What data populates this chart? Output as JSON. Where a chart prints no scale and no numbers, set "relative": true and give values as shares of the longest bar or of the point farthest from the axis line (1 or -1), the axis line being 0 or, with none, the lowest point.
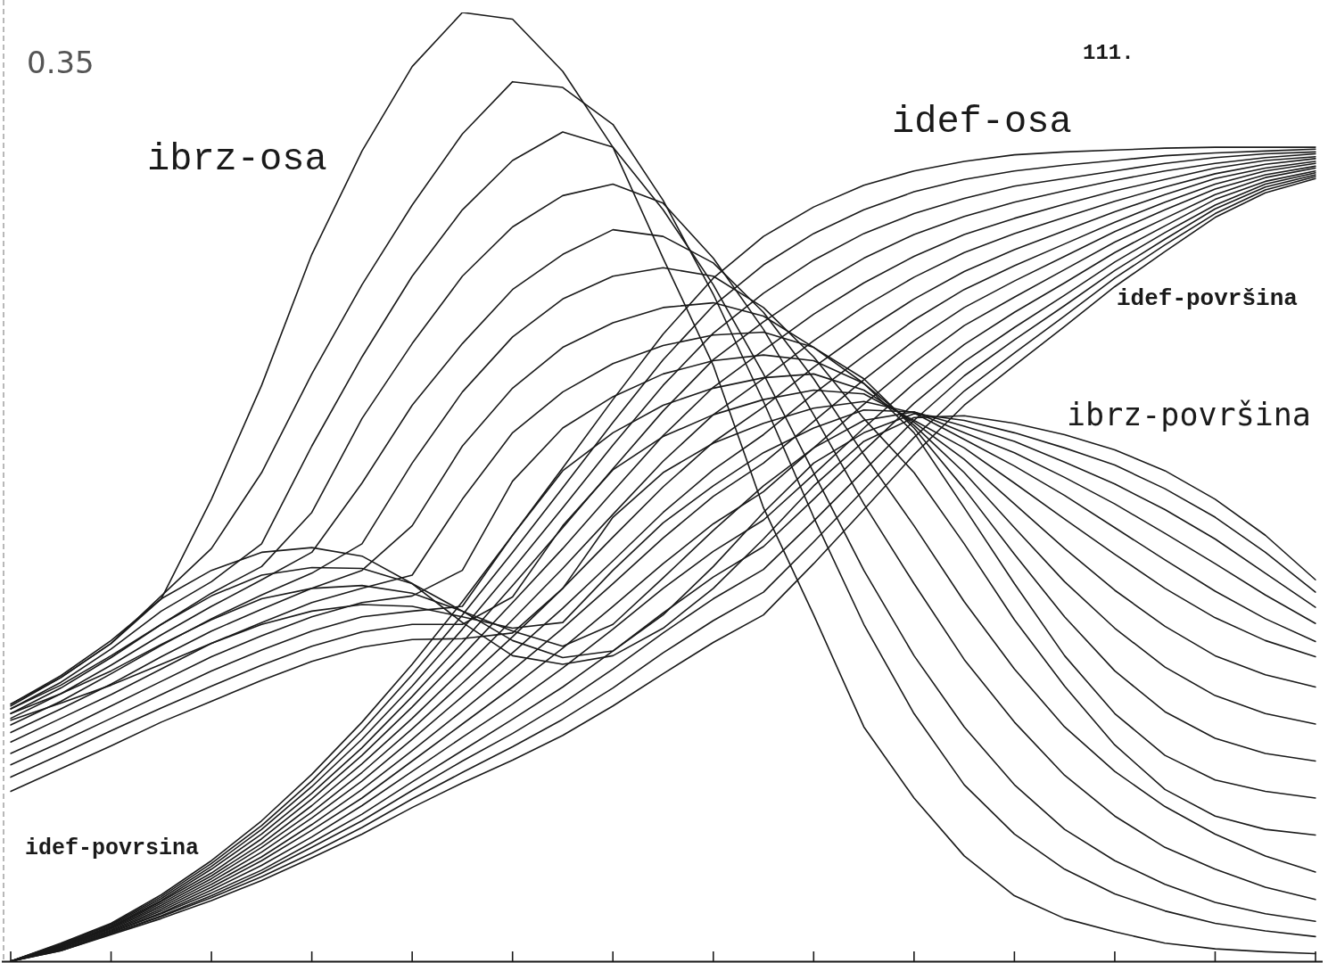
{
  "chart_data": {
    "type": "line",
    "relative": true,
    "marker": "none",
    "line_style": "solid",
    "categories": [
      null,
      null,
      null,
      null,
      null,
      null,
      null,
      null,
      null,
      null,
      null,
      null,
      null,
      null,
      null,
      null,
      null,
      null,
      null,
      null,
      null,
      null,
      null,
      null,
      null,
      null,
      null
    ],
    "annotations": [
      "0.35",
      "111.",
      "idef-povrsina"
    ],
    "series": [
      {
        "name": "ibrz-osa",
        "color": "#1a1a1a",
        "values": [
          0.271,
          0.299,
          0.335,
          0.382,
          0.487,
          0.607,
          0.745,
          0.854,
          0.943,
          1,
          0.993,
          0.938,
          0.858,
          0.741,
          0.628,
          0.478,
          0.365,
          0.247,
          0.172,
          0.111,
          0.069,
          0.045,
          0.031,
          0.019,
          0.013,
          0.01,
          0.008
        ]
      },
      {
        "color": "#1a1a1a",
        "values": [
          0.269,
          0.299,
          0.335,
          0.385,
          0.435,
          0.515,
          0.619,
          0.713,
          0.797,
          0.872,
          0.927,
          0.921,
          0.882,
          0.802,
          0.703,
          0.59,
          0.468,
          0.355,
          0.261,
          0.186,
          0.134,
          0.097,
          0.071,
          0.053,
          0.04,
          0.032,
          0.026
        ]
      },
      {
        "color": "#1a1a1a",
        "values": [
          0.266,
          0.294,
          0.329,
          0.369,
          0.4,
          0.44,
          0.543,
          0.637,
          0.722,
          0.792,
          0.844,
          0.874,
          0.858,
          0.792,
          0.713,
          0.619,
          0.515,
          0.412,
          0.322,
          0.247,
          0.186,
          0.139,
          0.106,
          0.081,
          0.062,
          0.05,
          0.042
        ]
      },
      {
        "color": "#1a1a1a",
        "values": [
          0.261,
          0.288,
          0.32,
          0.355,
          0.388,
          0.416,
          0.473,
          0.572,
          0.651,
          0.722,
          0.774,
          0.807,
          0.819,
          0.799,
          0.741,
          0.666,
          0.576,
          0.482,
          0.398,
          0.318,
          0.252,
          0.196,
          0.153,
          0.12,
          0.097,
          0.078,
          0.065
        ]
      },
      {
        "color": "#1a1a1a",
        "values": [
          0.256,
          0.282,
          0.312,
          0.344,
          0.374,
          0.402,
          0.431,
          0.504,
          0.586,
          0.651,
          0.708,
          0.745,
          0.771,
          0.764,
          0.736,
          0.684,
          0.614,
          0.534,
          0.459,
          0.379,
          0.308,
          0.247,
          0.2,
          0.163,
          0.134,
          0.111,
          0.094
        ]
      },
      {
        "color": "#1a1a1a",
        "values": [
          0.249,
          0.274,
          0.303,
          0.333,
          0.361,
          0.386,
          0.409,
          0.44,
          0.525,
          0.6,
          0.658,
          0.698,
          0.722,
          0.731,
          0.722,
          0.689,
          0.637,
          0.572,
          0.515,
          0.44,
          0.36,
          0.29,
          0.228,
          0.181,
          0.153,
          0.139,
          0.133
        ]
      },
      {
        "color": "#1a1a1a",
        "values": [
          0.241,
          0.266,
          0.292,
          0.321,
          0.348,
          0.371,
          0.393,
          0.412,
          0.459,
          0.543,
          0.604,
          0.647,
          0.673,
          0.689,
          0.694,
          0.68,
          0.647,
          0.609,
          0.557,
          0.478,
          0.398,
          0.322,
          0.261,
          0.217,
          0.191,
          0.179,
          0.172
        ]
      },
      {
        "color": "#1a1a1a",
        "values": [
          0.231,
          0.256,
          0.281,
          0.308,
          0.335,
          0.357,
          0.378,
          0.393,
          0.407,
          0.487,
          0.557,
          0.6,
          0.63,
          0.649,
          0.66,
          0.663,
          0.647,
          0.614,
          0.562,
          0.498,
          0.429,
          0.363,
          0.306,
          0.263,
          0.235,
          0.219,
          0.211
        ]
      },
      {
        "color": "#1a1a1a",
        "values": [
          0.219,
          0.243,
          0.269,
          0.295,
          0.321,
          0.343,
          0.363,
          0.378,
          0.385,
          0.412,
          0.506,
          0.562,
          0.595,
          0.619,
          0.633,
          0.639,
          0.633,
          0.609,
          0.565,
          0.515,
          0.457,
          0.4,
          0.351,
          0.31,
          0.28,
          0.261,
          0.25
        ]
      },
      {
        "color": "#1a1a1a",
        "values": [
          0.207,
          0.231,
          0.256,
          0.281,
          0.306,
          0.328,
          0.348,
          0.363,
          0.369,
          0.374,
          0.449,
          0.517,
          0.557,
          0.586,
          0.604,
          0.615,
          0.619,
          0.602,
          0.568,
          0.529,
          0.482,
          0.435,
          0.391,
          0.353,
          0.322,
          0.302,
          0.289
        ]
      },
      {
        "color": "#1a1a1a",
        "values": [
          0.194,
          0.218,
          0.243,
          0.267,
          0.29,
          0.312,
          0.332,
          0.347,
          0.355,
          0.355,
          0.384,
          0.459,
          0.518,
          0.553,
          0.576,
          0.592,
          0.602,
          0.598,
          0.57,
          0.541,
          0.504,
          0.466,
          0.429,
          0.393,
          0.362,
          0.338,
          0.321
        ]
      },
      {
        "color": "#1a1a1a",
        "values": [
          0.179,
          0.203,
          0.227,
          0.252,
          0.274,
          0.296,
          0.316,
          0.331,
          0.339,
          0.34,
          0.346,
          0.393,
          0.468,
          0.515,
          0.546,
          0.567,
          0.583,
          0.59,
          0.578,
          0.55,
          0.522,
          0.491,
          0.457,
          0.423,
          0.39,
          0.361,
          0.337
        ]
      },
      {
        "color": "#1a1a1a",
        "values": [
          0.254,
          0.272,
          0.291,
          0.313,
          0.335,
          0.355,
          0.369,
          0.376,
          0.374,
          0.363,
          0.351,
          0.357,
          0.412,
          0.462,
          0.501,
          0.536,
          0.562,
          0.581,
          0.579,
          0.557,
          0.536,
          0.51,
          0.482,
          0.451,
          0.419,
          0.386,
          0.356
        ]
      },
      {
        "color": "#1a1a1a",
        "values": [
          0.261,
          0.282,
          0.306,
          0.334,
          0.36,
          0.382,
          0.393,
          0.396,
          0.388,
          0.369,
          0.348,
          0.332,
          0.355,
          0.404,
          0.454,
          0.501,
          0.541,
          0.57,
          0.579,
          0.564,
          0.548,
          0.526,
          0.503,
          0.476,
          0.445,
          0.409,
          0.373
        ]
      },
      {
        "color": "#1a1a1a",
        "values": [
          0.266,
          0.291,
          0.322,
          0.355,
          0.385,
          0.407,
          0.415,
          0.414,
          0.398,
          0.369,
          0.338,
          0.32,
          0.327,
          0.365,
          0.416,
          0.473,
          0.525,
          0.557,
          0.577,
          0.57,
          0.557,
          0.541,
          0.523,
          0.498,
          0.468,
          0.431,
          0.389
        ]
      },
      {
        "name": "ibrz-površina",
        "color": "#1a1a1a",
        "values": [
          0.271,
          0.301,
          0.338,
          0.382,
          0.412,
          0.431,
          0.436,
          0.427,
          0.398,
          0.357,
          0.322,
          0.313,
          0.322,
          0.351,
          0.393,
          0.445,
          0.501,
          0.548,
          0.573,
          0.575,
          0.567,
          0.555,
          0.539,
          0.517,
          0.487,
          0.449,
          0.402
        ]
      },
      {
        "name": "idef-osa",
        "color": "#1a1a1a",
        "values": [
          0,
          0.019,
          0.04,
          0.07,
          0.106,
          0.148,
          0.197,
          0.252,
          0.313,
          0.379,
          0.449,
          0.52,
          0.592,
          0.661,
          0.72,
          0.764,
          0.795,
          0.818,
          0.833,
          0.843,
          0.85,
          0.853,
          0.855,
          0.857,
          0.858,
          0.858,
          0.858
        ]
      },
      {
        "color": "#1a1a1a",
        "values": [
          0,
          0.018,
          0.039,
          0.068,
          0.103,
          0.143,
          0.19,
          0.243,
          0.302,
          0.365,
          0.431,
          0.499,
          0.568,
          0.634,
          0.691,
          0.734,
          0.767,
          0.792,
          0.811,
          0.824,
          0.833,
          0.839,
          0.844,
          0.849,
          0.852,
          0.854,
          0.856
        ]
      },
      {
        "color": "#1a1a1a",
        "values": [
          0,
          0.018,
          0.038,
          0.066,
          0.1,
          0.139,
          0.184,
          0.234,
          0.29,
          0.35,
          0.413,
          0.478,
          0.544,
          0.607,
          0.662,
          0.704,
          0.739,
          0.767,
          0.788,
          0.804,
          0.817,
          0.825,
          0.833,
          0.841,
          0.847,
          0.851,
          0.853
        ]
      },
      {
        "color": "#1a1a1a",
        "values": [
          0,
          0.017,
          0.037,
          0.064,
          0.097,
          0.134,
          0.177,
          0.225,
          0.279,
          0.336,
          0.396,
          0.457,
          0.519,
          0.58,
          0.634,
          0.674,
          0.71,
          0.741,
          0.766,
          0.785,
          0.8,
          0.812,
          0.823,
          0.833,
          0.841,
          0.847,
          0.851
        ]
      },
      {
        "color": "#1a1a1a",
        "values": [
          0,
          0.017,
          0.036,
          0.063,
          0.093,
          0.129,
          0.171,
          0.217,
          0.268,
          0.322,
          0.378,
          0.435,
          0.495,
          0.554,
          0.605,
          0.644,
          0.682,
          0.715,
          0.743,
          0.766,
          0.783,
          0.798,
          0.812,
          0.824,
          0.836,
          0.844,
          0.848
        ]
      },
      {
        "color": "#1a1a1a",
        "values": [
          0,
          0.016,
          0.036,
          0.061,
          0.09,
          0.124,
          0.164,
          0.208,
          0.256,
          0.307,
          0.36,
          0.414,
          0.471,
          0.527,
          0.576,
          0.614,
          0.654,
          0.69,
          0.721,
          0.747,
          0.767,
          0.784,
          0.801,
          0.816,
          0.83,
          0.84,
          0.846
        ]
      },
      {
        "color": "#1a1a1a",
        "values": [
          0,
          0.015,
          0.035,
          0.059,
          0.087,
          0.12,
          0.157,
          0.199,
          0.245,
          0.293,
          0.342,
          0.393,
          0.447,
          0.5,
          0.547,
          0.584,
          0.626,
          0.664,
          0.698,
          0.727,
          0.75,
          0.77,
          0.79,
          0.808,
          0.825,
          0.836,
          0.843
        ]
      },
      {
        "color": "#1a1a1a",
        "values": [
          0,
          0.015,
          0.034,
          0.057,
          0.084,
          0.115,
          0.151,
          0.19,
          0.234,
          0.279,
          0.325,
          0.372,
          0.422,
          0.473,
          0.518,
          0.555,
          0.598,
          0.638,
          0.676,
          0.708,
          0.733,
          0.756,
          0.779,
          0.8,
          0.819,
          0.833,
          0.841
        ]
      },
      {
        "color": "#1a1a1a",
        "values": [
          0,
          0.014,
          0.033,
          0.055,
          0.081,
          0.11,
          0.144,
          0.181,
          0.222,
          0.264,
          0.307,
          0.351,
          0.398,
          0.446,
          0.49,
          0.525,
          0.569,
          0.613,
          0.654,
          0.689,
          0.717,
          0.743,
          0.769,
          0.792,
          0.814,
          0.829,
          0.838
        ]
      },
      {
        "color": "#1a1a1a",
        "values": [
          0,
          0.014,
          0.032,
          0.053,
          0.078,
          0.106,
          0.138,
          0.172,
          0.211,
          0.25,
          0.289,
          0.33,
          0.374,
          0.419,
          0.461,
          0.495,
          0.541,
          0.587,
          0.631,
          0.67,
          0.7,
          0.729,
          0.758,
          0.783,
          0.808,
          0.826,
          0.836
        ]
      },
      {
        "color": "#1a1a1a",
        "values": [
          0,
          0.013,
          0.031,
          0.051,
          0.075,
          0.101,
          0.131,
          0.164,
          0.2,
          0.236,
          0.271,
          0.309,
          0.35,
          0.393,
          0.432,
          0.465,
          0.513,
          0.562,
          0.609,
          0.65,
          0.684,
          0.715,
          0.747,
          0.775,
          0.803,
          0.822,
          0.833
        ]
      },
      {
        "color": "#1a1a1a",
        "values": [
          0,
          0.012,
          0.03,
          0.05,
          0.072,
          0.096,
          0.125,
          0.155,
          0.189,
          0.222,
          0.255,
          0.289,
          0.327,
          0.367,
          0.405,
          0.437,
          0.487,
          0.538,
          0.588,
          0.632,
          0.668,
          0.702,
          0.737,
          0.768,
          0.797,
          0.819,
          0.831
        ]
      },
      {
        "color": "#1a1a1a",
        "values": [
          0,
          0.012,
          0.029,
          0.048,
          0.069,
          0.093,
          0.12,
          0.148,
          0.18,
          0.211,
          0.24,
          0.272,
          0.308,
          0.346,
          0.382,
          0.413,
          0.464,
          0.517,
          0.57,
          0.617,
          0.655,
          0.691,
          0.728,
          0.761,
          0.793,
          0.816,
          0.829
        ]
      },
      {
        "color": "#1a1a1a",
        "values": [
          0,
          0.011,
          0.029,
          0.047,
          0.067,
          0.089,
          0.114,
          0.141,
          0.171,
          0.199,
          0.226,
          0.255,
          0.288,
          0.325,
          0.359,
          0.389,
          0.442,
          0.497,
          0.552,
          0.601,
          0.641,
          0.68,
          0.72,
          0.755,
          0.788,
          0.813,
          0.827
        ]
      },
      {
        "name": "idef-površina",
        "color": "#1a1a1a",
        "values": [
          0,
          0.011,
          0.028,
          0.045,
          0.064,
          0.085,
          0.109,
          0.134,
          0.162,
          0.188,
          0.212,
          0.238,
          0.269,
          0.303,
          0.336,
          0.365,
          0.419,
          0.476,
          0.534,
          0.586,
          0.628,
          0.669,
          0.711,
          0.748,
          0.784,
          0.81,
          0.825
        ]
      }
    ]
  }
}
